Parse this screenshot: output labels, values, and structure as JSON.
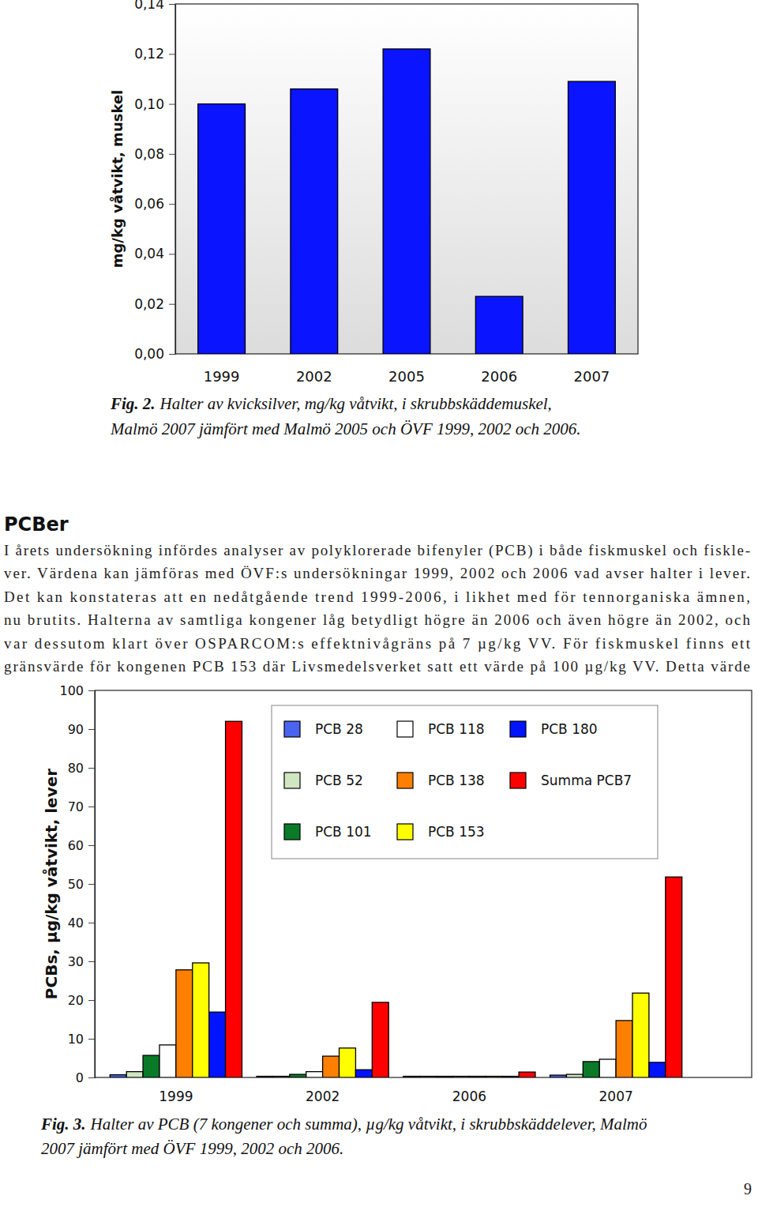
{
  "chart_data": [
    {
      "type": "bar",
      "title": {
        "label": "Fig. 2.",
        "text": [
          "Halter av kvicksilver, mg/kg våtvikt, i skrubbskäddemuskel,",
          "Malmö 2007 jämfört med Malmö 2005 och ÖVF 1999, 2002 och 2006."
        ]
      },
      "y_label": "mg/kg våtvikt, muskel",
      "categories": [
        "1999",
        "2002",
        "2005",
        "2006",
        "2007"
      ],
      "values": [
        0.1,
        0.106,
        0.122,
        0.023,
        0.109
      ],
      "color": "#0a14ff",
      "ylim": [
        0,
        0.14
      ],
      "yticks": [
        {
          "value": 0,
          "label": "0,00"
        },
        {
          "value": 0.02,
          "label": "0,02"
        },
        {
          "value": 0.04,
          "label": "0,04"
        },
        {
          "value": 0.06,
          "label": "0,06"
        },
        {
          "value": 0.08,
          "label": "0,08"
        },
        {
          "value": 0.1,
          "label": "0,10"
        },
        {
          "value": 0.12,
          "label": "0,12"
        },
        {
          "value": 0.14,
          "label": "0,14"
        }
      ],
      "grid": false
    },
    {
      "type": "bar",
      "title": {
        "label": "Fig. 3.",
        "text": [
          "Halter av PCB (7 kongener och summa), µg/kg våtvikt, i skrubbskäddelever, Malmö",
          "2007 jämfört med ÖVF 1999, 2002 och 2006."
        ]
      },
      "y_label": "PCBs, µg/kg våtvikt, lever",
      "categories": [
        "1999",
        "2002",
        "2006",
        "2007"
      ],
      "series": [
        {
          "name": "PCB 28",
          "color": "#4a64f0",
          "values": [
            0.7,
            0.3,
            0.3,
            0.6
          ]
        },
        {
          "name": "PCB 52",
          "color": "#cfe6c0",
          "values": [
            1.5,
            0.3,
            0.3,
            0.8
          ]
        },
        {
          "name": "PCB 101",
          "color": "#0a7a28",
          "values": [
            5.7,
            0.8,
            0.3,
            4.1
          ]
        },
        {
          "name": "PCB 118",
          "color": "#ffffff",
          "values": [
            8.4,
            1.5,
            0.3,
            4.7
          ]
        },
        {
          "name": "PCB 138",
          "color": "#ff8000",
          "values": [
            27.8,
            5.5,
            0.3,
            14.7
          ]
        },
        {
          "name": "PCB 153",
          "color": "#ffff00",
          "values": [
            29.6,
            7.6,
            0.3,
            21.8
          ]
        },
        {
          "name": "PCB 180",
          "color": "#0014ff",
          "values": [
            16.9,
            2.0,
            0.3,
            3.9
          ]
        },
        {
          "name": "Summa PCB7",
          "color": "#ff0000",
          "values": [
            92.0,
            19.4,
            1.4,
            51.8
          ]
        }
      ],
      "ylim": [
        0,
        100
      ],
      "yticks": [
        0,
        10,
        20,
        30,
        40,
        50,
        60,
        70,
        80,
        90,
        100
      ],
      "legend": "top-right",
      "grid": false
    }
  ],
  "document": {
    "heading": "PCBer",
    "lines": [
      "I årets undersökning infördes analyser av polyklorerade bifenyler (PCB) i både fiskmuskel och fiskle-",
      "ver. Värdena kan jämföras med ÖVF:s undersökningar 1999, 2002 och 2006 vad avser halter i lever.",
      "Det kan konstateras att en nedåtgående trend 1999-2006, i likhet med för tennorganiska ämnen,",
      "nu brutits. Halterna av samtliga kongener låg betydligt högre än 2006 och även högre än 2002, och",
      "var dessutom klart över OSPARCOM:s effektnivågräns på 7 µg/kg VV. För fiskmuskel finns ett",
      "gränsvärde för kongenen PCB 153 där Livsmedelsverket satt ett värde på 100 µg/kg VV. Detta värde"
    ],
    "page_number": 9
  }
}
